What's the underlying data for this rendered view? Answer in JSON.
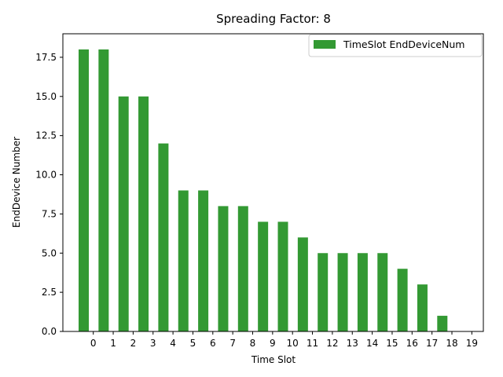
{
  "chart_data": {
    "type": "bar",
    "title": "Spreading Factor: 8",
    "xlabel": "Time Slot",
    "ylabel": "EndDevice Number",
    "categories": [
      "0",
      "1",
      "2",
      "3",
      "4",
      "5",
      "6",
      "7",
      "8",
      "9",
      "10",
      "11",
      "12",
      "13",
      "14",
      "15",
      "16",
      "17",
      "18",
      "19"
    ],
    "series": [
      {
        "name": "TimeSlot EndDeviceNum",
        "color": "#339933",
        "values": [
          18,
          18,
          15,
          15,
          12,
          9,
          9,
          8,
          8,
          7,
          7,
          6,
          5,
          5,
          5,
          5,
          4,
          3,
          1,
          0
        ]
      }
    ],
    "ylim": [
      0,
      19
    ],
    "yticks": [
      0.0,
      2.5,
      5.0,
      7.5,
      10.0,
      12.5,
      15.0,
      17.5
    ],
    "ytick_labels": [
      "0.0",
      "2.5",
      "5.0",
      "7.5",
      "10.0",
      "12.5",
      "15.0",
      "17.5"
    ],
    "grid": false,
    "legend_position": "top-right"
  }
}
